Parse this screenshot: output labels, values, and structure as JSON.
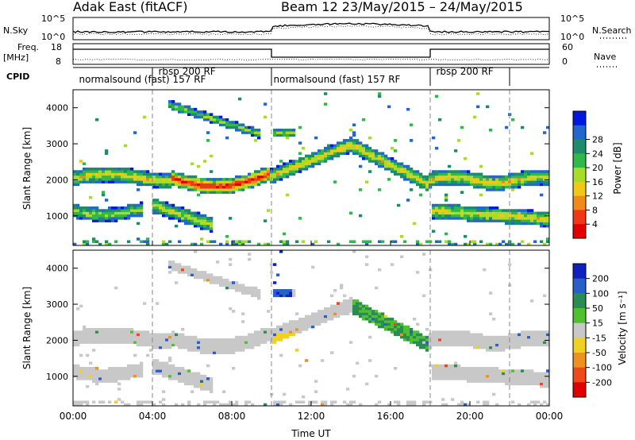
{
  "header": {
    "station": "Adak East (fitACF)",
    "beam_date": "Beam 12  23/May/2015 – 24/May/2015"
  },
  "side_labels": {
    "nsky": "N.Sky",
    "nsearch": "N.Search",
    "freq": "Freq.",
    "mhz": "[MHz]",
    "nave": "Nave",
    "cpid": "CPID"
  },
  "noise_ticks": {
    "top": "10^5",
    "bottom": "10^0"
  },
  "freq_ticks": {
    "top": "18",
    "bottom": "8"
  },
  "nave_ticks": {
    "top": "60",
    "bottom": "0"
  },
  "cpid_labels": [
    {
      "text": "normalsound (fast) 157 RF",
      "t": 0.3
    },
    {
      "text": "rbsp 200 RF",
      "t": 4.3
    },
    {
      "text": "normalsound (fast) 157 RF",
      "t": 10.1
    },
    {
      "text": "rbsp 200 RF",
      "t": 18.3
    }
  ],
  "chart_data": [
    {
      "type": "heatmap",
      "panel": "power",
      "xlabel": "Time UT",
      "ylabel": "Slant Range [km]",
      "xlim": [
        0,
        24
      ],
      "ylim": [
        180,
        4500
      ],
      "x_ticks": [
        "00:00",
        "04:00",
        "08:00",
        "12:00",
        "16:00",
        "20:00",
        "00:00"
      ],
      "y_ticks": [
        1000,
        2000,
        3000,
        4000
      ],
      "colorbar": {
        "label": "Power [dB]",
        "ticks": [
          4,
          8,
          12,
          16,
          20,
          24,
          28
        ],
        "colors": [
          "#0018e0",
          "#2466d0",
          "#1e8c6a",
          "#30b84a",
          "#a8dc28",
          "#f0c818",
          "#f08a18",
          "#f03818",
          "#e00000"
        ]
      },
      "dashed_markers_ut": [
        4,
        10,
        18,
        22
      ]
    },
    {
      "type": "heatmap",
      "panel": "velocity",
      "xlabel": "Time UT",
      "ylabel": "Slant Range [km]",
      "xlim": [
        0,
        24
      ],
      "ylim": [
        180,
        4500
      ],
      "x_ticks": [
        "00:00",
        "04:00",
        "08:00",
        "12:00",
        "16:00",
        "20:00",
        "00:00"
      ],
      "y_ticks": [
        1000,
        2000,
        3000,
        4000
      ],
      "colorbar": {
        "label": "Velocity [m s⁻¹]",
        "ticks": [
          200,
          100,
          50,
          15,
          -15,
          -50,
          -100,
          -200
        ],
        "colors": [
          "#1020c0",
          "#2860c8",
          "#2a8c52",
          "#50c030",
          "#c8c8c8",
          "#f0d020",
          "#f09020",
          "#f04818",
          "#e00000"
        ]
      },
      "dashed_markers_ut": [
        4,
        10,
        18,
        22
      ]
    },
    {
      "type": "line",
      "panel": "noise",
      "series": [
        {
          "name": "N.Sky"
        },
        {
          "name": "N.Search"
        }
      ]
    },
    {
      "type": "line",
      "panel": "frequency",
      "series": [
        {
          "name": "Freq."
        },
        {
          "name": "Nave"
        }
      ]
    }
  ]
}
